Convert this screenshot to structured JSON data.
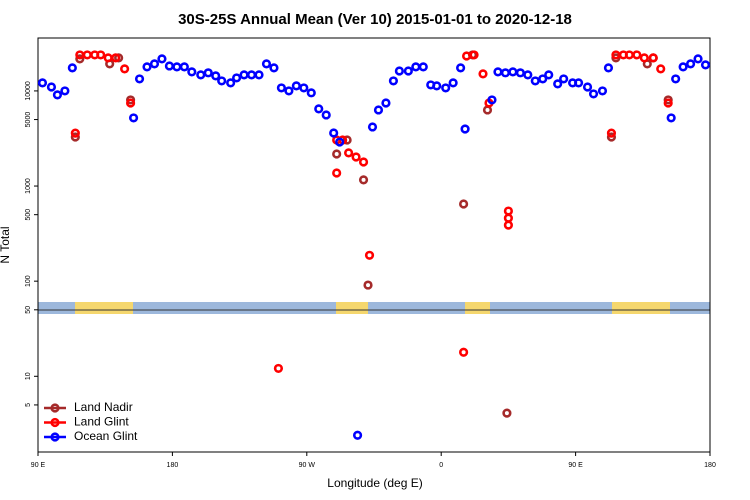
{
  "chart_data": {
    "type": "scatter",
    "title": "30S-25S Annual Mean (Ver 10)   2015-01-01 to 2020-12-18",
    "x_label": "Longitude (deg E)",
    "y_label": "N Total",
    "log_y": true,
    "xlim": [
      90,
      540
    ],
    "xticks": [
      {
        "value": 90,
        "label": "90 E"
      },
      180,
      {
        "value": 270,
        "label": "90 W"
      },
      {
        "value": 360,
        "label": "0"
      },
      {
        "value": 450,
        "label": "90 E"
      },
      {
        "value": 540,
        "label": "180"
      }
    ],
    "ylim": [
      1.6,
      36000
    ],
    "yticks": [
      5,
      10,
      50,
      100,
      500,
      1000,
      5000,
      10000
    ],
    "legend": "bottom-left",
    "series": [
      {
        "name": "Land Nadir",
        "color": "#a52a2a",
        "x": [
          115,
          118,
          138,
          144,
          152,
          290,
          297,
          308,
          311,
          375,
          381,
          391,
          404,
          474,
          477,
          498,
          502,
          512
        ],
        "values": [
          3280,
          21700,
          19250,
          22250,
          8040,
          2170,
          3050,
          1160,
          91,
          647,
          23900,
          6310,
          4.1,
          3280,
          22250,
          19250,
          22250,
          8040
        ]
      },
      {
        "name": "Land Glint",
        "color": "#ff0000",
        "x": [
          115,
          118,
          123,
          128,
          132,
          137,
          142,
          148,
          152,
          251,
          290,
          290,
          294,
          298,
          303,
          308,
          312,
          375,
          377,
          382,
          388,
          392,
          405,
          405,
          405,
          474,
          477,
          482,
          486,
          491,
          496,
          502,
          507,
          512
        ],
        "values": [
          3600,
          23900,
          23900,
          23900,
          23900,
          22250,
          22250,
          17050,
          7470,
          12.1,
          3050,
          1370,
          3050,
          2230,
          2020,
          1790,
          187,
          17.9,
          23300,
          23900,
          15100,
          7470,
          546,
          460,
          388,
          3600,
          23900,
          23900,
          23900,
          23900,
          22250,
          22250,
          17050,
          7470
        ]
      },
      {
        "name": "Ocean Glint",
        "color": "#0000ff",
        "x": [
          93,
          99,
          103,
          108,
          113,
          154,
          158,
          163,
          168,
          173,
          178,
          183,
          188,
          193,
          199,
          204,
          209,
          213,
          219,
          223,
          228,
          233,
          238,
          243,
          248,
          253,
          258,
          263,
          268,
          273,
          278,
          283,
          288,
          292,
          304,
          314,
          318,
          323,
          328,
          332,
          338,
          343,
          348,
          353,
          357,
          363,
          368,
          373,
          376,
          394,
          398,
          403,
          408,
          413,
          418,
          423,
          428,
          432,
          438,
          442,
          448,
          452,
          458,
          462,
          468,
          472,
          514,
          517,
          522,
          527,
          532,
          537
        ],
        "values": [
          12140,
          11000,
          9080,
          10000,
          17460,
          5200,
          13370,
          17900,
          19250,
          21700,
          18300,
          17900,
          17900,
          15850,
          14740,
          15500,
          14380,
          12740,
          12140,
          13700,
          14740,
          14740,
          14740,
          19250,
          17460,
          10750,
          10000,
          11290,
          10750,
          9550,
          6470,
          5590,
          3610,
          2900,
          2.4,
          4180,
          6310,
          7470,
          12740,
          16200,
          16200,
          17900,
          17900,
          11560,
          11290,
          10750,
          12140,
          17460,
          3980,
          8040,
          15850,
          15500,
          15850,
          15500,
          14740,
          12740,
          13370,
          14740,
          11850,
          13370,
          12140,
          12140,
          11000,
          9300,
          10000,
          17460,
          5200,
          13370,
          17900,
          19250,
          21700,
          18800
        ]
      }
    ]
  }
}
